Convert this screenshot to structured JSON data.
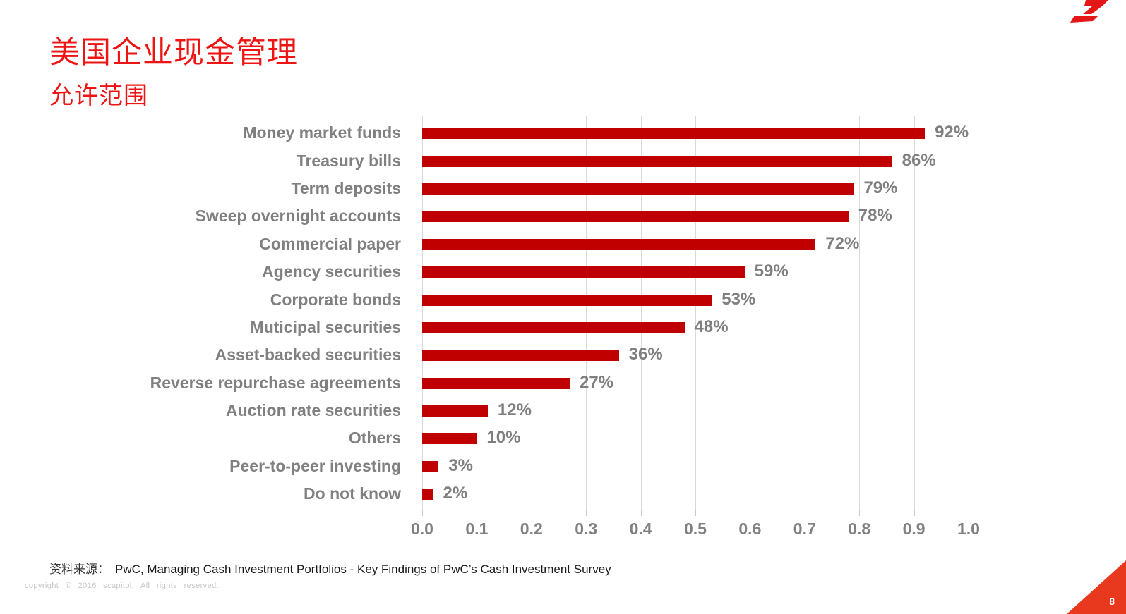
{
  "slide": {
    "title": "美国企业现金管理",
    "subtitle": "允许范围",
    "source_label": "资料来源：",
    "source_text": "PwC, Managing Cash Investment Portfolios - Key Findings of PwC’s Cash Investment Survey",
    "footer": "copyright © 2016 scapitol. All rights reserved.",
    "page_number": "8"
  },
  "colors": {
    "bar": "#c00000",
    "title_red": "#ee1414",
    "corner_triangle": "#e8391f",
    "logo_red": "#e31717",
    "label_gray": "#808080",
    "gridline": "#d9d9d9"
  },
  "chart_data": {
    "type": "bar",
    "orientation": "horizontal",
    "title": "",
    "xlabel": "",
    "ylabel": "",
    "categories": [
      "Money market funds",
      "Treasury bills",
      "Term deposits",
      "Sweep overnight accounts",
      "Commercial paper",
      "Agency securities",
      "Corporate bonds",
      "Muticipal securities",
      "Asset-backed securities",
      "Reverse repurchase agreements",
      "Auction rate securities",
      "Others",
      "Peer-to-peer investing",
      "Do not know"
    ],
    "values": [
      0.92,
      0.86,
      0.79,
      0.78,
      0.72,
      0.59,
      0.53,
      0.48,
      0.36,
      0.27,
      0.12,
      0.1,
      0.03,
      0.02
    ],
    "value_labels": [
      "92%",
      "86%",
      "79%",
      "78%",
      "72%",
      "59%",
      "53%",
      "48%",
      "36%",
      "27%",
      "12%",
      "10%",
      "3%",
      "2%"
    ],
    "x_ticks": [
      "0.0",
      "0.1",
      "0.2",
      "0.3",
      "0.4",
      "0.5",
      "0.6",
      "0.7",
      "0.8",
      "0.9",
      "1.0"
    ],
    "xlim": [
      0.0,
      1.0
    ],
    "grid": true,
    "legend": "none",
    "bar_color": "#c00000"
  }
}
